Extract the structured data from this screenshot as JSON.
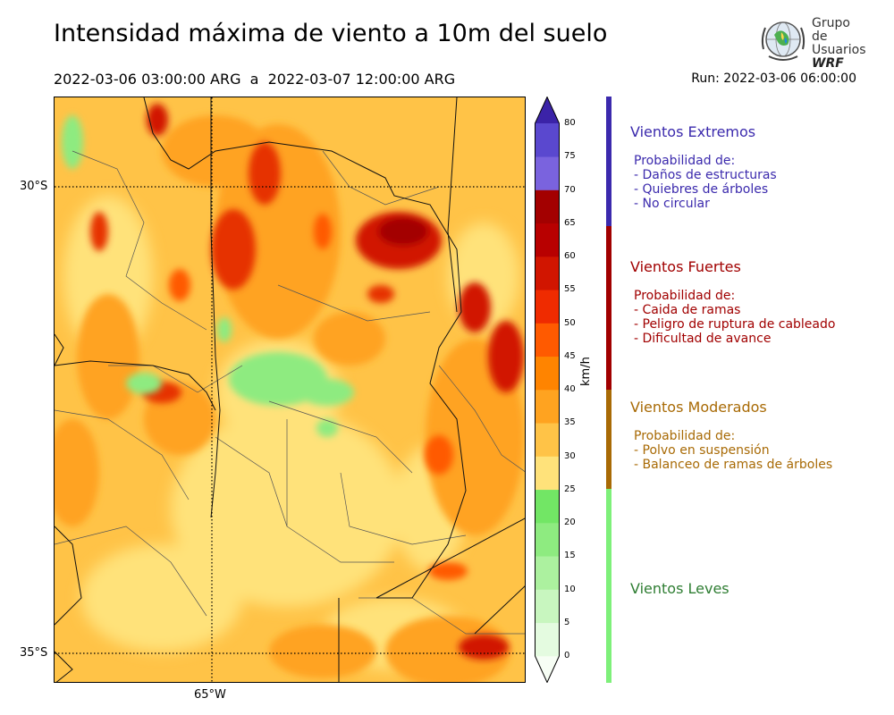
{
  "header": {
    "title": "Intensidad máxima de viento a 10m del suelo",
    "period": "2022-03-06 03:00:00 ARG  a  2022-03-07 12:00:00 ARG",
    "run": "Run: 2022-03-06 06:00:00"
  },
  "logo": {
    "line1": "Grupo de",
    "line2": "Usuarios",
    "line3": "WRF"
  },
  "map": {
    "lat_labels": [
      "30°S",
      "35°S"
    ],
    "lon_labels": [
      "65°W"
    ],
    "gridlines": "dotted"
  },
  "colorbar": {
    "units": "km/h",
    "ticks": [
      "0",
      "5",
      "10",
      "15",
      "20",
      "25",
      "30",
      "35",
      "40",
      "45",
      "50",
      "55",
      "60",
      "65",
      "70",
      "75",
      "80"
    ],
    "colors": [
      "#f7fef5",
      "#e4fbe0",
      "#c8f6bf",
      "#acf19f",
      "#8eeb80",
      "#72e665",
      "#ffe27a",
      "#ffc347",
      "#ffa320",
      "#ff8400",
      "#ff5a00",
      "#ef2b00",
      "#d11500",
      "#b80000",
      "#a30000",
      "#7a63de",
      "#5a48cf",
      "#4334bb",
      "#3b23a8"
    ],
    "extend": "both"
  },
  "categories": [
    {
      "title": "Vientos Extremos",
      "color": "#3b2aad",
      "lines": [
        "Probabilidad de:",
        "- Daños de estructuras",
        "- Quiebres de árboles",
        "- No circular"
      ]
    },
    {
      "title": "Vientos Fuertes",
      "color": "#a10000",
      "lines": [
        "Probabilidad de:",
        "- Caida de ramas",
        "- Peligro de ruptura de cableado",
        "- Dificultad de avance"
      ]
    },
    {
      "title": "Vientos Moderados",
      "color": "#a86a05",
      "lines": [
        "Probabilidad de:",
        "- Polvo en suspensión",
        "- Balanceo de ramas de árboles"
      ]
    },
    {
      "title": "Vientos Leves",
      "color": "#2e7d32",
      "lines": []
    }
  ]
}
